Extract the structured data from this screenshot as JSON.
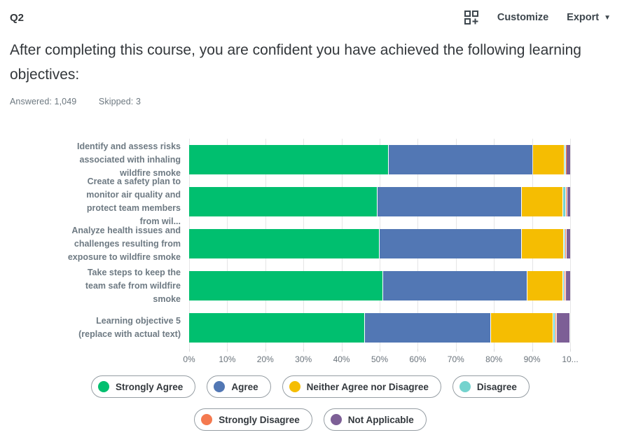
{
  "header": {
    "question_number": "Q2",
    "customize_label": "Customize",
    "export_label": "Export"
  },
  "title": "After completing this course, you are confident you have achieved the following learning objectives:",
  "stats": {
    "answered_label": "Answered:",
    "answered_value": "1,049",
    "skipped_label": "Skipped:",
    "skipped_value": "3"
  },
  "chart_data": {
    "type": "bar",
    "orientation": "horizontal-stacked",
    "unit": "percent",
    "grid": true,
    "categories": [
      "Identify and assess risks\nassociated with inhaling\nwildfire smoke",
      "Create a safety plan to\nmonitor air quality and\nprotect team members\nfrom wil...",
      "Analyze health issues and\nchallenges resulting from\nexposure to wildfire smoke",
      "Take steps to keep the\nteam safe from wildfire\nsmoke",
      "Learning objective 5\n(replace with actual text)"
    ],
    "series": [
      {
        "name": "Strongly Agree",
        "color": "#00bf6f",
        "values": [
          52.4,
          49.5,
          50.0,
          50.9,
          46.2
        ]
      },
      {
        "name": "Agree",
        "color": "#5277b4",
        "values": [
          37.8,
          37.8,
          37.3,
          37.8,
          33.0
        ]
      },
      {
        "name": "Neither Agree nor Disagree",
        "color": "#f5bd02",
        "values": [
          8.3,
          10.9,
          11.0,
          9.5,
          16.4
        ]
      },
      {
        "name": "Disagree",
        "color": "#74d3ce",
        "values": [
          0.3,
          0.7,
          0.4,
          0.4,
          0.5
        ]
      },
      {
        "name": "Strongly Disagree",
        "color": "#f4794f",
        "values": [
          0.1,
          0.1,
          0.2,
          0.2,
          0.5
        ]
      },
      {
        "name": "Not Applicable",
        "color": "#7d5f96",
        "values": [
          1.1,
          1.0,
          1.1,
          1.2,
          3.4
        ]
      }
    ],
    "x_axis": {
      "range": [
        0,
        100
      ],
      "tick_labels": [
        "0%",
        "10%",
        "20%",
        "30%",
        "40%",
        "50%",
        "60%",
        "70%",
        "80%",
        "90%",
        "10..."
      ]
    },
    "legend": {
      "position": "bottom",
      "rows": [
        [
          "Strongly Agree",
          "Agree",
          "Neither Agree nor Disagree",
          "Disagree"
        ],
        [
          "Strongly Disagree",
          "Not Applicable"
        ]
      ]
    }
  }
}
